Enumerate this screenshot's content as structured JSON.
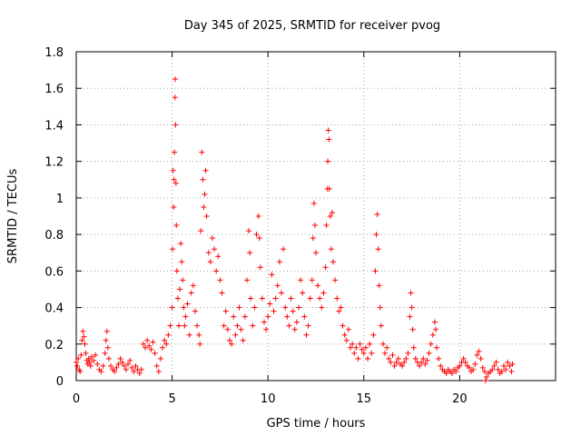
{
  "chart_data": {
    "type": "scatter",
    "title": "Day 345 of 2025, SRMTID for receiver pvog",
    "xlabel": "GPS time / hours",
    "ylabel": "SRMTID / TECUs",
    "xlim": [
      0,
      25
    ],
    "ylim": [
      0,
      1.8
    ],
    "xticks": [
      0,
      5,
      10,
      15,
      20
    ],
    "xtick_labels": [
      "0",
      "5",
      "10",
      "15",
      "20"
    ],
    "yticks": [
      0,
      0.2,
      0.4,
      0.6,
      0.8,
      1,
      1.2,
      1.4,
      1.6,
      1.8
    ],
    "ytick_labels": [
      "0",
      "0.2",
      "0.4",
      "0.6",
      "0.8",
      "1",
      "1.2",
      "1.4",
      "1.6",
      "1.8"
    ],
    "grid": true,
    "marker": "+",
    "series_color": "#ff0000",
    "series": [
      {
        "name": "pvog",
        "points": [
          [
            0.0,
            0.1
          ],
          [
            0.05,
            0.08
          ],
          [
            0.1,
            0.12
          ],
          [
            0.15,
            0.06
          ],
          [
            0.2,
            0.05
          ],
          [
            0.25,
            0.14
          ],
          [
            0.3,
            0.22
          ],
          [
            0.35,
            0.27
          ],
          [
            0.4,
            0.24
          ],
          [
            0.45,
            0.2
          ],
          [
            0.5,
            0.15
          ],
          [
            0.55,
            0.11
          ],
          [
            0.6,
            0.09
          ],
          [
            0.65,
            0.12
          ],
          [
            0.7,
            0.1
          ],
          [
            0.75,
            0.08
          ],
          [
            0.8,
            0.13
          ],
          [
            0.9,
            0.11
          ],
          [
            1.0,
            0.14
          ],
          [
            1.1,
            0.09
          ],
          [
            1.2,
            0.06
          ],
          [
            1.3,
            0.05
          ],
          [
            1.4,
            0.08
          ],
          [
            1.5,
            0.15
          ],
          [
            1.55,
            0.22
          ],
          [
            1.6,
            0.27
          ],
          [
            1.65,
            0.18
          ],
          [
            1.7,
            0.12
          ],
          [
            1.8,
            0.08
          ],
          [
            1.9,
            0.06
          ],
          [
            2.0,
            0.05
          ],
          [
            2.1,
            0.07
          ],
          [
            2.2,
            0.09
          ],
          [
            2.3,
            0.12
          ],
          [
            2.4,
            0.1
          ],
          [
            2.5,
            0.08
          ],
          [
            2.6,
            0.06
          ],
          [
            2.7,
            0.09
          ],
          [
            2.8,
            0.11
          ],
          [
            2.9,
            0.07
          ],
          [
            3.0,
            0.05
          ],
          [
            3.1,
            0.08
          ],
          [
            3.2,
            0.06
          ],
          [
            3.3,
            0.04
          ],
          [
            3.4,
            0.06
          ],
          [
            3.5,
            0.2
          ],
          [
            3.6,
            0.18
          ],
          [
            3.7,
            0.22
          ],
          [
            3.8,
            0.19
          ],
          [
            3.9,
            0.17
          ],
          [
            4.0,
            0.21
          ],
          [
            4.1,
            0.15
          ],
          [
            4.2,
            0.08
          ],
          [
            4.3,
            0.05
          ],
          [
            4.4,
            0.12
          ],
          [
            4.5,
            0.18
          ],
          [
            4.6,
            0.22
          ],
          [
            4.7,
            0.2
          ],
          [
            4.8,
            0.25
          ],
          [
            4.9,
            0.3
          ],
          [
            5.0,
            0.4
          ],
          [
            5.02,
            0.72
          ],
          [
            5.05,
            1.15
          ],
          [
            5.08,
            0.95
          ],
          [
            5.1,
            1.1
          ],
          [
            5.12,
            1.25
          ],
          [
            5.15,
            1.55
          ],
          [
            5.16,
            1.65
          ],
          [
            5.18,
            1.4
          ],
          [
            5.2,
            1.08
          ],
          [
            5.22,
            0.85
          ],
          [
            5.25,
            0.6
          ],
          [
            5.3,
            0.45
          ],
          [
            5.35,
            0.3
          ],
          [
            5.4,
            0.5
          ],
          [
            5.45,
            0.75
          ],
          [
            5.5,
            0.65
          ],
          [
            5.55,
            0.55
          ],
          [
            5.6,
            0.4
          ],
          [
            5.65,
            0.3
          ],
          [
            5.7,
            0.35
          ],
          [
            5.8,
            0.42
          ],
          [
            5.9,
            0.25
          ],
          [
            6.0,
            0.48
          ],
          [
            6.1,
            0.52
          ],
          [
            6.2,
            0.38
          ],
          [
            6.3,
            0.3
          ],
          [
            6.4,
            0.25
          ],
          [
            6.45,
            0.2
          ],
          [
            6.5,
            0.82
          ],
          [
            6.55,
            1.25
          ],
          [
            6.6,
            1.1
          ],
          [
            6.65,
            0.95
          ],
          [
            6.7,
            1.02
          ],
          [
            6.75,
            1.15
          ],
          [
            6.8,
            0.9
          ],
          [
            6.9,
            0.7
          ],
          [
            7.0,
            0.65
          ],
          [
            7.1,
            0.78
          ],
          [
            7.2,
            0.72
          ],
          [
            7.3,
            0.6
          ],
          [
            7.4,
            0.68
          ],
          [
            7.5,
            0.55
          ],
          [
            7.6,
            0.48
          ],
          [
            7.7,
            0.3
          ],
          [
            7.8,
            0.38
          ],
          [
            7.9,
            0.28
          ],
          [
            8.0,
            0.22
          ],
          [
            8.1,
            0.2
          ],
          [
            8.2,
            0.35
          ],
          [
            8.3,
            0.25
          ],
          [
            8.4,
            0.3
          ],
          [
            8.5,
            0.4
          ],
          [
            8.6,
            0.28
          ],
          [
            8.7,
            0.22
          ],
          [
            8.8,
            0.35
          ],
          [
            8.9,
            0.55
          ],
          [
            9.0,
            0.82
          ],
          [
            9.05,
            0.7
          ],
          [
            9.1,
            0.45
          ],
          [
            9.2,
            0.3
          ],
          [
            9.3,
            0.4
          ],
          [
            9.4,
            0.8
          ],
          [
            9.5,
            0.9
          ],
          [
            9.55,
            0.78
          ],
          [
            9.6,
            0.62
          ],
          [
            9.7,
            0.45
          ],
          [
            9.8,
            0.32
          ],
          [
            9.9,
            0.28
          ],
          [
            10.0,
            0.35
          ],
          [
            10.1,
            0.42
          ],
          [
            10.2,
            0.58
          ],
          [
            10.3,
            0.38
          ],
          [
            10.4,
            0.45
          ],
          [
            10.5,
            0.52
          ],
          [
            10.6,
            0.65
          ],
          [
            10.7,
            0.48
          ],
          [
            10.8,
            0.72
          ],
          [
            10.9,
            0.4
          ],
          [
            11.0,
            0.35
          ],
          [
            11.1,
            0.3
          ],
          [
            11.2,
            0.45
          ],
          [
            11.3,
            0.38
          ],
          [
            11.4,
            0.28
          ],
          [
            11.5,
            0.32
          ],
          [
            11.6,
            0.4
          ],
          [
            11.7,
            0.55
          ],
          [
            11.8,
            0.48
          ],
          [
            11.9,
            0.35
          ],
          [
            12.0,
            0.25
          ],
          [
            12.1,
            0.3
          ],
          [
            12.2,
            0.45
          ],
          [
            12.3,
            0.55
          ],
          [
            12.35,
            0.78
          ],
          [
            12.4,
            0.97
          ],
          [
            12.45,
            0.85
          ],
          [
            12.5,
            0.7
          ],
          [
            12.6,
            0.52
          ],
          [
            12.7,
            0.45
          ],
          [
            12.8,
            0.4
          ],
          [
            12.9,
            0.48
          ],
          [
            13.0,
            0.62
          ],
          [
            13.05,
            0.85
          ],
          [
            13.1,
            1.05
          ],
          [
            13.12,
            1.2
          ],
          [
            13.15,
            1.37
          ],
          [
            13.18,
            1.32
          ],
          [
            13.2,
            1.05
          ],
          [
            13.25,
            0.9
          ],
          [
            13.3,
            0.72
          ],
          [
            13.35,
            0.92
          ],
          [
            13.4,
            0.65
          ],
          [
            13.5,
            0.55
          ],
          [
            13.6,
            0.45
          ],
          [
            13.7,
            0.38
          ],
          [
            13.8,
            0.4
          ],
          [
            13.9,
            0.3
          ],
          [
            14.0,
            0.25
          ],
          [
            14.1,
            0.22
          ],
          [
            14.2,
            0.28
          ],
          [
            14.3,
            0.18
          ],
          [
            14.4,
            0.2
          ],
          [
            14.5,
            0.15
          ],
          [
            14.6,
            0.18
          ],
          [
            14.7,
            0.12
          ],
          [
            14.8,
            0.2
          ],
          [
            14.9,
            0.17
          ],
          [
            15.0,
            0.15
          ],
          [
            15.1,
            0.18
          ],
          [
            15.2,
            0.12
          ],
          [
            15.3,
            0.2
          ],
          [
            15.4,
            0.15
          ],
          [
            15.5,
            0.25
          ],
          [
            15.6,
            0.6
          ],
          [
            15.65,
            0.8
          ],
          [
            15.7,
            0.91
          ],
          [
            15.75,
            0.72
          ],
          [
            15.8,
            0.52
          ],
          [
            15.85,
            0.4
          ],
          [
            15.9,
            0.3
          ],
          [
            16.0,
            0.2
          ],
          [
            16.1,
            0.15
          ],
          [
            16.2,
            0.18
          ],
          [
            16.3,
            0.12
          ],
          [
            16.4,
            0.1
          ],
          [
            16.5,
            0.14
          ],
          [
            16.6,
            0.08
          ],
          [
            16.7,
            0.1
          ],
          [
            16.8,
            0.12
          ],
          [
            16.9,
            0.09
          ],
          [
            17.0,
            0.08
          ],
          [
            17.1,
            0.1
          ],
          [
            17.2,
            0.12
          ],
          [
            17.3,
            0.15
          ],
          [
            17.4,
            0.35
          ],
          [
            17.45,
            0.48
          ],
          [
            17.5,
            0.4
          ],
          [
            17.55,
            0.28
          ],
          [
            17.6,
            0.18
          ],
          [
            17.7,
            0.12
          ],
          [
            17.8,
            0.1
          ],
          [
            17.9,
            0.08
          ],
          [
            18.0,
            0.1
          ],
          [
            18.1,
            0.12
          ],
          [
            18.2,
            0.09
          ],
          [
            18.3,
            0.11
          ],
          [
            18.4,
            0.15
          ],
          [
            18.5,
            0.2
          ],
          [
            18.6,
            0.25
          ],
          [
            18.7,
            0.32
          ],
          [
            18.75,
            0.28
          ],
          [
            18.8,
            0.18
          ],
          [
            18.9,
            0.12
          ],
          [
            19.0,
            0.08
          ],
          [
            19.1,
            0.06
          ],
          [
            19.2,
            0.05
          ],
          [
            19.3,
            0.04
          ],
          [
            19.4,
            0.06
          ],
          [
            19.5,
            0.05
          ],
          [
            19.6,
            0.04
          ],
          [
            19.7,
            0.06
          ],
          [
            19.8,
            0.05
          ],
          [
            19.9,
            0.07
          ],
          [
            20.0,
            0.08
          ],
          [
            20.1,
            0.1
          ],
          [
            20.2,
            0.12
          ],
          [
            20.3,
            0.1
          ],
          [
            20.4,
            0.08
          ],
          [
            20.5,
            0.07
          ],
          [
            20.6,
            0.05
          ],
          [
            20.7,
            0.06
          ],
          [
            20.8,
            0.09
          ],
          [
            20.9,
            0.14
          ],
          [
            21.0,
            0.16
          ],
          [
            21.1,
            0.12
          ],
          [
            21.2,
            0.07
          ],
          [
            21.3,
            0.05
          ],
          [
            21.35,
            0.0
          ],
          [
            21.4,
            0.02
          ],
          [
            21.5,
            0.04
          ],
          [
            21.6,
            0.05
          ],
          [
            21.7,
            0.06
          ],
          [
            21.8,
            0.08
          ],
          [
            21.9,
            0.1
          ],
          [
            22.0,
            0.06
          ],
          [
            22.1,
            0.04
          ],
          [
            22.2,
            0.05
          ],
          [
            22.3,
            0.08
          ],
          [
            22.4,
            0.06
          ],
          [
            22.5,
            0.1
          ],
          [
            22.6,
            0.08
          ],
          [
            22.7,
            0.05
          ],
          [
            22.75,
            0.09
          ]
        ]
      }
    ]
  }
}
